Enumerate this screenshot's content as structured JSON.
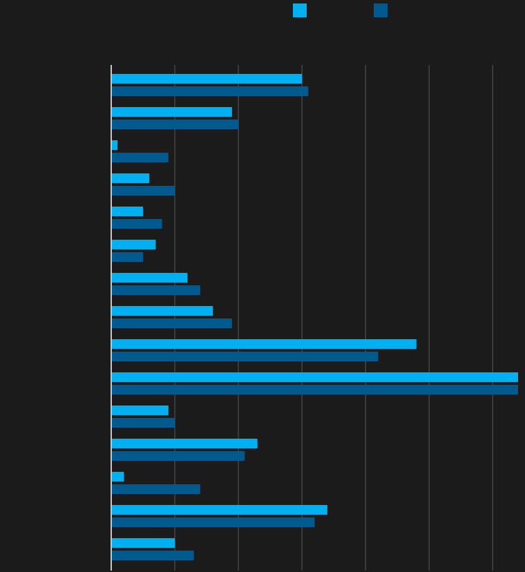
{
  "colors": {
    "background": "#1b1b1b",
    "series_a": "#00b0f0",
    "series_b": "#005a8f",
    "grid": "#5a5a5a",
    "axis": "#c8c8c8"
  },
  "legend": {
    "position": "top-center"
  },
  "chart_data": {
    "type": "bar",
    "orientation": "horizontal",
    "grid": true,
    "xlim": [
      0,
      64
    ],
    "categories": [
      "",
      "",
      "",
      "",
      "",
      "",
      "",
      "",
      "",
      "",
      "",
      "",
      "",
      "",
      ""
    ],
    "series": [
      {
        "color": "#00b0f0",
        "values": [
          30,
          19,
          1,
          6,
          5,
          7,
          12,
          16,
          48,
          64,
          9,
          23,
          2,
          34,
          10
        ]
      },
      {
        "color": "#005a8f",
        "values": [
          31,
          20,
          9,
          10,
          8,
          5,
          14,
          19,
          42,
          64,
          10,
          21,
          14,
          32,
          13
        ]
      }
    ]
  }
}
